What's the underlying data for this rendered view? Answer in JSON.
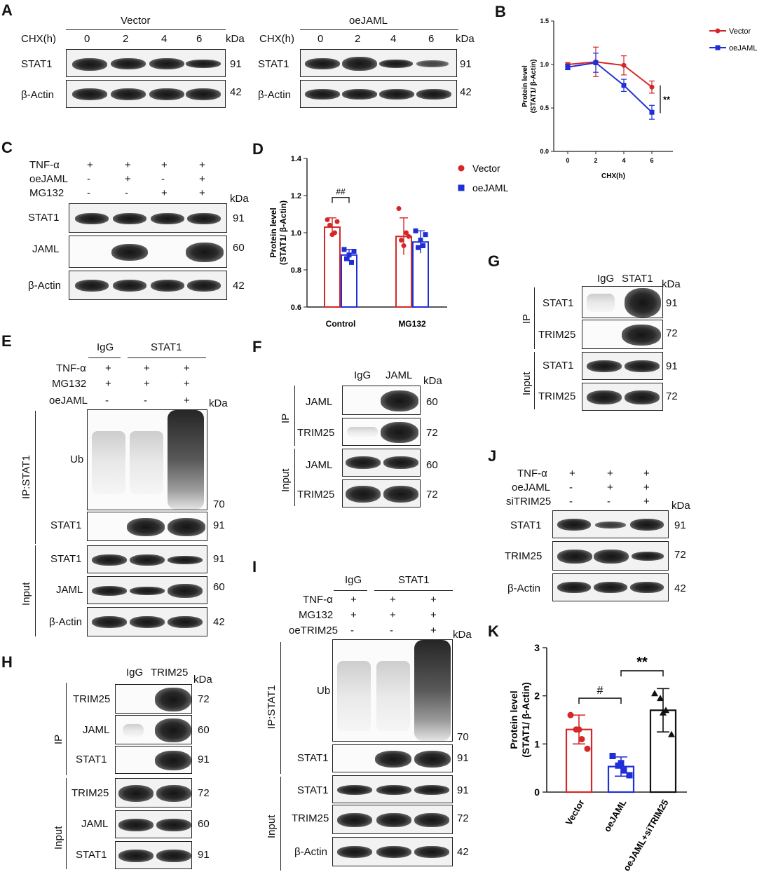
{
  "labels": {
    "A": "A",
    "B": "B",
    "C": "C",
    "D": "D",
    "E": "E",
    "F": "F",
    "G": "G",
    "H": "H",
    "I": "I",
    "J": "J",
    "K": "K"
  },
  "common": {
    "kda": "kDa",
    "stat1": "STAT1",
    "actin": "β-Actin",
    "jaml": "JAML",
    "trim25": "TRIM25",
    "ub": "Ub",
    "igg": "IgG",
    "ip": "IP",
    "input": "Input",
    "ipstat1": "IP:STAT1",
    "plus": "+",
    "minus": "-",
    "n91": "91",
    "n42": "42",
    "n60": "60",
    "n72": "72",
    "n70": "70"
  },
  "panelA": {
    "vector": "Vector",
    "oejaml": "oeJAML",
    "chx": "CHX(h)",
    "times": [
      "0",
      "2",
      "4",
      "6"
    ]
  },
  "panelC": {
    "rows": [
      "TNF-α",
      "oeJAML",
      "MG132"
    ],
    "signs": [
      [
        "+",
        "+",
        "+",
        "+"
      ],
      [
        "-",
        "+",
        "-",
        "+"
      ],
      [
        "-",
        "-",
        "+",
        "+"
      ]
    ]
  },
  "panelE": {
    "rows": [
      "TNF-α",
      "MG132",
      "oeJAML"
    ],
    "signs": [
      [
        "+",
        "+",
        "+"
      ],
      [
        "+",
        "+",
        "+"
      ],
      [
        "-",
        "-",
        "+"
      ]
    ]
  },
  "panelI": {
    "rows": [
      "TNF-α",
      "MG132",
      "oeTRIM25"
    ],
    "signs": [
      [
        "+",
        "+",
        "+"
      ],
      [
        "+",
        "+",
        "+"
      ],
      [
        "-",
        "-",
        "+"
      ]
    ]
  },
  "panelJ": {
    "rows": [
      "TNF-α",
      "oeJAML",
      "siTRIM25"
    ],
    "signs": [
      [
        "+",
        "+",
        "+"
      ],
      [
        "-",
        "+",
        "+"
      ],
      [
        "-",
        "-",
        "+"
      ]
    ]
  },
  "chart_data": [
    {
      "id": "B",
      "type": "line",
      "xlabel": "CHX(h)",
      "ylabel": "Protein level (STAT1/ β-Actin)",
      "x": [
        0,
        2,
        4,
        6
      ],
      "ylim": [
        0.0,
        1.5
      ],
      "yticks": [
        "0.0",
        "0.5",
        "1.0",
        "1.5"
      ],
      "series": [
        {
          "name": "Vector",
          "color": "#d62728",
          "values": [
            1.0,
            1.03,
            0.99,
            0.74
          ],
          "err": [
            0.02,
            0.17,
            0.11,
            0.07
          ]
        },
        {
          "name": "oeJAML",
          "color": "#1f2fd6",
          "values": [
            0.97,
            1.02,
            0.76,
            0.45
          ],
          "err": [
            0.03,
            0.11,
            0.07,
            0.08
          ]
        }
      ],
      "annotation": "**",
      "legend": "top-right"
    },
    {
      "id": "D",
      "type": "bar",
      "categories": [
        "Control",
        "MG132"
      ],
      "ylabel": "Protein level (STAT1/ β-Actin)",
      "ylim": [
        0.6,
        1.4
      ],
      "yticks": [
        "0.6",
        "0.8",
        "1.0",
        "1.2",
        "1.4"
      ],
      "series": [
        {
          "name": "Vector",
          "color": "#d62728",
          "values": [
            1.03,
            0.98
          ],
          "err": [
            0.05,
            0.1
          ],
          "points": [
            [
              1.07,
              1.04,
              0.99,
              1.0,
              1.06
            ],
            [
              1.13,
              0.96,
              0.93,
              1.0,
              0.98
            ]
          ]
        },
        {
          "name": "oeJAML",
          "color": "#1f2fd6",
          "values": [
            0.88,
            0.95
          ],
          "err": [
            0.03,
            0.06
          ],
          "points": [
            [
              0.91,
              0.86,
              0.88,
              0.84,
              0.9
            ],
            [
              1.01,
              0.92,
              0.96,
              0.93,
              0.99
            ]
          ]
        }
      ],
      "annotation": "##",
      "legend": "top-right"
    },
    {
      "id": "K",
      "type": "bar",
      "categories": [
        "Vector",
        "oeJAML",
        "oeJAML+siTRIM25"
      ],
      "ylabel": "Protein level (STAT1/ β-Actin)",
      "ylim": [
        0,
        3
      ],
      "yticks": [
        "0",
        "1",
        "2",
        "3"
      ],
      "series": [
        {
          "name": "",
          "colors": [
            "#d62728",
            "#1f2fd6",
            "#111111"
          ],
          "values": [
            1.3,
            0.53,
            1.7
          ],
          "err": [
            0.3,
            0.2,
            0.45
          ],
          "points": [
            [
              1.6,
              1.3,
              1.1,
              0.9,
              1.3
            ],
            [
              0.75,
              0.55,
              0.45,
              0.35,
              0.6
            ],
            [
              2.05,
              1.95,
              1.7,
              1.2,
              1.65
            ]
          ]
        }
      ],
      "annotations": [
        "#",
        "**"
      ]
    }
  ]
}
